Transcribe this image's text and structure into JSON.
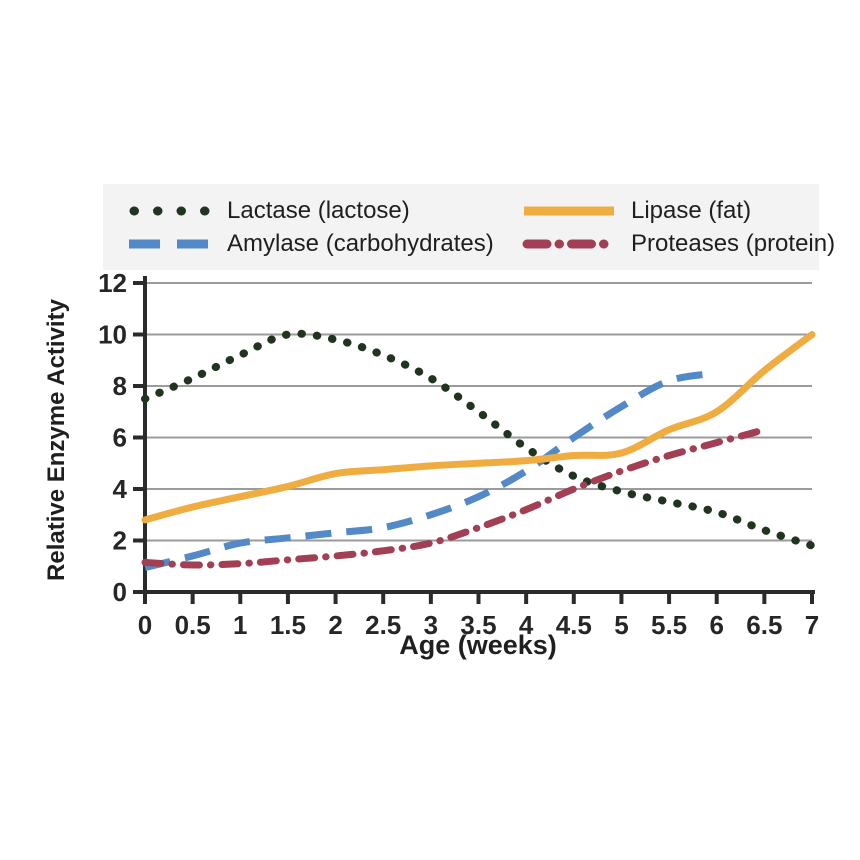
{
  "figure": {
    "x_axis_title": "Age (weeks)",
    "y_axis_title": "Relative Enzyme Activity"
  },
  "colors": {
    "lactase": "#203420",
    "amylase": "#5289c6",
    "lipase": "#efac40",
    "proteases": "#a23f55",
    "grid": "#9b9b9b",
    "axis": "#2b2b2b",
    "text": "#1f1f1f",
    "legend_bg": "#f3f3f3"
  },
  "legend": {
    "items": [
      {
        "label": "Lactase (lactose)",
        "style": "dotted",
        "color": "#203420"
      },
      {
        "label": "Lipase (fat)",
        "style": "solid",
        "color": "#efac40"
      },
      {
        "label": "Amylase (carbohydrates)",
        "style": "dashed",
        "color": "#5289c6"
      },
      {
        "label": "Proteases (protein)",
        "style": "dashdot",
        "color": "#a23f55"
      }
    ]
  },
  "chart_data": {
    "type": "line",
    "title": "",
    "xlabel": "Age (weeks)",
    "ylabel": "Relative Enzyme Activity",
    "xlim": [
      0,
      7
    ],
    "ylim": [
      0,
      12
    ],
    "x_ticks": [
      0,
      0.5,
      1,
      1.5,
      2,
      2.5,
      3,
      3.5,
      4,
      4.5,
      5,
      5.5,
      6,
      6.5,
      7
    ],
    "y_ticks": [
      0,
      2,
      4,
      6,
      8,
      10,
      12
    ],
    "grid": "horizontal",
    "legend_position": "top",
    "series": [
      {
        "name": "Lactase (lactose)",
        "style": "dotted",
        "color": "#203420",
        "x": [
          0,
          0.5,
          1,
          1.5,
          2,
          2.5,
          3,
          3.5,
          4,
          4.5,
          5,
          5.5,
          6,
          6.5,
          7
        ],
        "values": [
          7.5,
          8.3,
          9.2,
          10,
          9.8,
          9.2,
          8.3,
          7.0,
          5.6,
          4.5,
          3.9,
          3.5,
          3.1,
          2.4,
          1.8
        ]
      },
      {
        "name": "Amylase (carbohydrates)",
        "style": "dashed",
        "color": "#5289c6",
        "x": [
          0,
          0.5,
          1,
          1.5,
          2,
          2.5,
          3,
          3.5,
          4,
          4.5,
          5,
          5.5,
          6
        ],
        "values": [
          0.95,
          1.4,
          1.9,
          2.1,
          2.3,
          2.5,
          3.0,
          3.7,
          4.7,
          6.0,
          7.2,
          8.2,
          8.5
        ]
      },
      {
        "name": "Lipase (fat)",
        "style": "solid",
        "color": "#efac40",
        "x": [
          0,
          0.5,
          1,
          1.5,
          2,
          2.5,
          3,
          3.5,
          4,
          4.5,
          5,
          5.5,
          6,
          6.5,
          7
        ],
        "values": [
          2.8,
          3.3,
          3.7,
          4.1,
          4.6,
          4.75,
          4.9,
          5.0,
          5.1,
          5.3,
          5.4,
          6.3,
          7.0,
          8.6,
          10.0
        ]
      },
      {
        "name": "Proteases (protein)",
        "style": "dashdot",
        "color": "#a23f55",
        "x": [
          0,
          0.5,
          1,
          1.5,
          2,
          2.5,
          3,
          3.5,
          4,
          4.5,
          5,
          5.5,
          6,
          6.5
        ],
        "values": [
          1.15,
          1.05,
          1.1,
          1.25,
          1.4,
          1.6,
          1.9,
          2.5,
          3.2,
          4.0,
          4.7,
          5.3,
          5.8,
          6.3
        ]
      }
    ]
  }
}
